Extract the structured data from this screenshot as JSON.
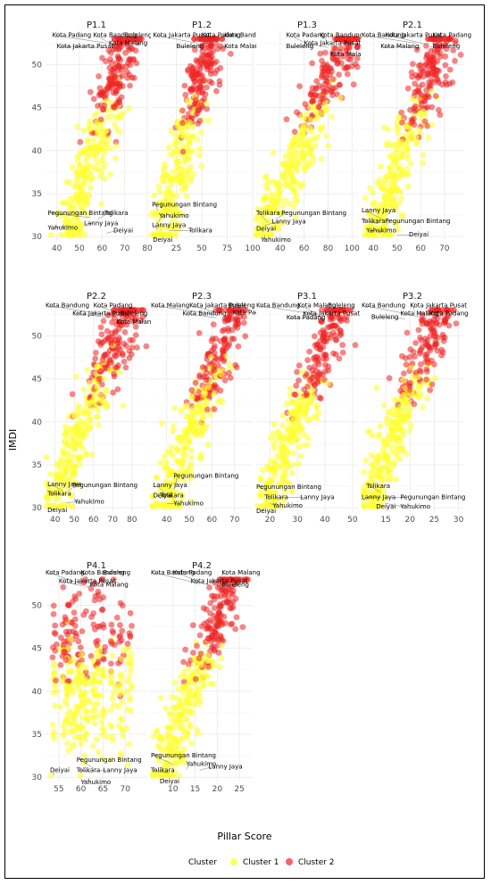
{
  "chart_data": {
    "type": "scatter",
    "xlabel": "Pillar Score",
    "ylabel": "IMDI",
    "ylim": [
      29.5,
      54
    ],
    "y_ticks": [
      30,
      35,
      40,
      45,
      50
    ],
    "legend": {
      "title": "Cluster",
      "position": "bottom",
      "entries": [
        {
          "name": "Cluster 1",
          "color": "#ffff33"
        },
        {
          "name": "Cluster 2",
          "color": "#ee2222"
        }
      ]
    },
    "grid": true,
    "panels": [
      {
        "title": "P1.1",
        "xlim": [
          35,
          80
        ],
        "x_ticks": [
          40,
          50,
          60,
          70,
          80
        ],
        "trend": [
          [
            45,
            30
          ],
          [
            72,
            54
          ]
        ],
        "labels": [
          {
            "text": "Kota Padang",
            "x": 38,
            "y": 53.2,
            "px": 62,
            "py": 52.5
          },
          {
            "text": "Kota Bandung",
            "x": 56,
            "y": 53.2,
            "px": 64,
            "py": 52.4
          },
          {
            "text": "Buleleng",
            "x": 70,
            "y": 53.2,
            "px": 67,
            "py": 52.6
          },
          {
            "text": "Kota Malang",
            "x": 63,
            "y": 52.3,
            "px": 66,
            "py": 52.0
          },
          {
            "text": "Kota Jakarta Pusat",
            "x": 40,
            "y": 51.9,
            "px": 61,
            "py": 52.0
          },
          {
            "text": "Pegunungan Bintang",
            "x": 36,
            "y": 32.5,
            "px": 55,
            "py": 32.2
          },
          {
            "text": "Tolikara",
            "x": 61,
            "y": 32.5,
            "px": 58,
            "py": 32.0
          },
          {
            "text": "Lanny Jaya",
            "x": 52,
            "y": 31.3,
            "px": 56,
            "py": 31.5
          },
          {
            "text": "Yahukimo",
            "x": 36,
            "y": 30.8,
            "px": 46,
            "py": 31.2
          },
          {
            "text": "Deiyai",
            "x": 65,
            "y": 30.5,
            "px": 62,
            "py": 30.4
          }
        ]
      },
      {
        "title": "P1.2",
        "xlim": [
          0,
          100
        ],
        "x_ticks": [
          25,
          50,
          75,
          100
        ],
        "trend": [
          [
            10,
            30
          ],
          [
            62,
            54
          ]
        ],
        "labels": [
          {
            "text": "Kota Jakarta Pusat",
            "x": 2,
            "y": 53.2,
            "px": 46,
            "py": 52.5
          },
          {
            "text": "Kota Padang",
            "x": 50,
            "y": 53.2,
            "px": 55,
            "py": 52.5
          },
          {
            "text": "Kota Bandung",
            "x": 72,
            "y": 53.2,
            "px": 60,
            "py": 52.6
          },
          {
            "text": "Buleleng",
            "x": 25,
            "y": 51.9,
            "px": 45,
            "py": 52.1
          },
          {
            "text": "Kota Malang",
            "x": 72,
            "y": 51.9,
            "px": 65,
            "py": 52.0
          },
          {
            "text": "Pegunungan Bintang",
            "x": 1,
            "y": 33.5,
            "px": 7,
            "py": 33.0
          },
          {
            "text": "Yahukimo",
            "x": 8,
            "y": 32.2,
            "px": 6,
            "py": 31.5
          },
          {
            "text": "Lanny Jaya",
            "x": 1,
            "y": 31.1,
            "px": 6,
            "py": 30.8
          },
          {
            "text": "Tolikara",
            "x": 37,
            "y": 30.5,
            "px": 18,
            "py": 30.7
          },
          {
            "text": "Deiyai",
            "x": 2,
            "y": 29.4,
            "px": 3,
            "py": 29.9
          }
        ]
      },
      {
        "title": "P1.3",
        "xlim": [
          20,
          105
        ],
        "x_ticks": [
          40,
          60,
          80,
          100
        ],
        "trend": [
          [
            25,
            30
          ],
          [
            100,
            54
          ]
        ],
        "labels": [
          {
            "text": "Kota Padang",
            "x": 45,
            "y": 53.2,
            "px": 62,
            "py": 52.5
          },
          {
            "text": "Kota Bandung",
            "x": 73,
            "y": 53.2,
            "px": 80,
            "py": 52.5
          },
          {
            "text": "Kota Jakarta Pusat",
            "x": 60,
            "y": 52.3,
            "px": 80,
            "py": 52.0
          },
          {
            "text": "Buleleng",
            "x": 45,
            "y": 51.9,
            "px": 68,
            "py": 52.1
          },
          {
            "text": "Kota Malang",
            "x": 82,
            "y": 51.0,
            "px": 90,
            "py": 51.8
          },
          {
            "text": "Pegunungan Bintang",
            "x": 41,
            "y": 32.5,
            "px": 36,
            "py": 32.0
          },
          {
            "text": "Tolikara",
            "x": 20,
            "y": 32.5,
            "px": 30,
            "py": 31.6
          },
          {
            "text": "Lanny Jaya",
            "x": 33,
            "y": 31.5,
            "px": 28,
            "py": 31.3
          },
          {
            "text": "Deiyai",
            "x": 20,
            "y": 30.7,
            "px": 26,
            "py": 30.5
          },
          {
            "text": "Yahukimo",
            "x": 24,
            "y": 29.4,
            "px": 27,
            "py": 30.2
          }
        ]
      },
      {
        "title": "P2.1",
        "xlim": [
          35,
          78
        ],
        "x_ticks": [
          40,
          50,
          60,
          70
        ],
        "trend": [
          [
            40,
            30
          ],
          [
            70,
            54
          ]
        ],
        "labels": [
          {
            "text": "Kota Bandung",
            "x": 35,
            "y": 53.2,
            "px": 58,
            "py": 52.5
          },
          {
            "text": "Kota Jakarta Pusat",
            "x": 45,
            "y": 53.2,
            "px": 62,
            "py": 52.4
          },
          {
            "text": "Kota Padang",
            "x": 65,
            "y": 53.2,
            "px": 68,
            "py": 52.5
          },
          {
            "text": "Kota Malang",
            "x": 43,
            "y": 51.9,
            "px": 60,
            "py": 52.0
          },
          {
            "text": "Buleleng",
            "x": 65,
            "y": 51.9,
            "px": 64,
            "py": 52.1
          },
          {
            "text": "Lanny Jaya",
            "x": 35,
            "y": 32.8,
            "px": 44,
            "py": 32.0
          },
          {
            "text": "Tolikara",
            "x": 35,
            "y": 31.6,
            "px": 42,
            "py": 31.5
          },
          {
            "text": "Pegunungan Bintang",
            "x": 45,
            "y": 31.6,
            "px": 46,
            "py": 31.4
          },
          {
            "text": "Yahukimo",
            "x": 37,
            "y": 30.5,
            "px": 44,
            "py": 30.6
          },
          {
            "text": "Deiyai",
            "x": 55,
            "y": 30.0,
            "px": 50,
            "py": 30.2
          }
        ]
      },
      {
        "title": "P2.2",
        "xlim": [
          35,
          88
        ],
        "x_ticks": [
          40,
          50,
          60,
          70,
          80
        ],
        "trend": [
          [
            38,
            30
          ],
          [
            80,
            54
          ]
        ],
        "labels": [
          {
            "text": "Kota Bandung",
            "x": 35,
            "y": 53.3,
            "px": 66,
            "py": 52.5
          },
          {
            "text": "Kota Padang",
            "x": 60,
            "y": 53.3,
            "px": 75,
            "py": 52.5
          },
          {
            "text": "Kota Jakarta Pusat",
            "x": 49,
            "y": 52.4,
            "px": 70,
            "py": 52.1
          },
          {
            "text": "Buleleng",
            "x": 74,
            "y": 52.4,
            "px": 72,
            "py": 52.3
          },
          {
            "text": "Kota Malang",
            "x": 72,
            "y": 51.4,
            "px": 78,
            "py": 52.0
          },
          {
            "text": "Lanny Jaya",
            "x": 36,
            "y": 32.5,
            "px": 44,
            "py": 32.0
          },
          {
            "text": "Pegunungan Bintang",
            "x": 49,
            "y": 32.4,
            "px": 47,
            "py": 32.0
          },
          {
            "text": "Tolikara",
            "x": 36,
            "y": 31.4,
            "px": 43,
            "py": 31.6
          },
          {
            "text": "Yahukimo",
            "x": 50,
            "y": 30.5,
            "px": 46,
            "py": 30.6
          },
          {
            "text": "Deiyai",
            "x": 36,
            "y": 29.5,
            "px": 39,
            "py": 29.9
          }
        ]
      },
      {
        "title": "P2.3",
        "xlim": [
          33,
          78
        ],
        "x_ticks": [
          40,
          50,
          60,
          70
        ],
        "trend": [
          [
            38,
            30
          ],
          [
            72,
            54
          ]
        ],
        "labels": [
          {
            "text": "Kota Malang",
            "x": 33,
            "y": 53.3,
            "px": 62,
            "py": 52.5
          },
          {
            "text": "Kota Jakarta Pusat",
            "x": 50,
            "y": 53.3,
            "px": 65,
            "py": 52.5
          },
          {
            "text": "Kota Bandung",
            "x": 47,
            "y": 52.4,
            "px": 62,
            "py": 52.1
          },
          {
            "text": "Buleleng",
            "x": 67,
            "y": 53.3,
            "px": 66,
            "py": 52.6
          },
          {
            "text": "Kota Padang",
            "x": 69,
            "y": 52.5,
            "px": 68,
            "py": 52.3
          },
          {
            "text": "Pegunungan Bintang",
            "x": 43,
            "y": 33.5,
            "px": 44,
            "py": 32.5
          },
          {
            "text": "Lanny Jaya",
            "x": 34,
            "y": 32.4,
            "px": 40,
            "py": 31.5
          },
          {
            "text": "Deiyai",
            "x": 34,
            "y": 31.2,
            "px": 38,
            "py": 31.0
          },
          {
            "text": "Tolikara",
            "x": 37,
            "y": 31.2,
            "px": 39,
            "py": 31.3
          },
          {
            "text": "Yahukimo",
            "x": 43,
            "y": 30.3,
            "px": 40,
            "py": 30.5
          }
        ]
      },
      {
        "title": "P3.1",
        "xlim": [
          15,
          52
        ],
        "x_ticks": [
          20,
          30,
          40,
          50
        ],
        "trend": [
          [
            18,
            30
          ],
          [
            46,
            54
          ]
        ],
        "labels": [
          {
            "text": "Kota Bandung",
            "x": 15,
            "y": 53.3,
            "px": 37,
            "py": 52.5
          },
          {
            "text": "Kota Malang",
            "x": 30,
            "y": 53.3,
            "px": 38,
            "py": 52.4
          },
          {
            "text": "Buleleng",
            "x": 41,
            "y": 53.3,
            "px": 42,
            "py": 52.6
          },
          {
            "text": "Kota Jakarta Pusat",
            "x": 32,
            "y": 52.4,
            "px": 39,
            "py": 52.2
          },
          {
            "text": "Kota Padang",
            "x": 26,
            "y": 51.9,
            "px": 37,
            "py": 52.0
          },
          {
            "text": "Pegunungan Bintang",
            "x": 15,
            "y": 32.2,
            "px": 19,
            "py": 32.0
          },
          {
            "text": "Tolikara",
            "x": 18,
            "y": 31.0,
            "px": 20,
            "py": 31.4
          },
          {
            "text": "Lanny Jaya",
            "x": 31,
            "y": 31.0,
            "px": 22,
            "py": 31.2
          },
          {
            "text": "Yahukimo",
            "x": 21,
            "y": 30.0,
            "px": 20,
            "py": 30.5
          },
          {
            "text": "Deiyai",
            "x": 15,
            "y": 29.4,
            "px": 18,
            "py": 29.9
          }
        ]
      },
      {
        "title": "P3.2",
        "xlim": [
          10,
          31
        ],
        "x_ticks": [
          15,
          20,
          25,
          30
        ],
        "trend": [
          [
            11,
            30
          ],
          [
            27,
            54
          ]
        ],
        "labels": [
          {
            "text": "Kota Bandung",
            "x": 10,
            "y": 53.3,
            "px": 20,
            "py": 52.5
          },
          {
            "text": "Kota Jakarta Pusat",
            "x": 20,
            "y": 53.3,
            "px": 21,
            "py": 52.5
          },
          {
            "text": "Kota Malang",
            "x": 18,
            "y": 52.4,
            "px": 22,
            "py": 52.2
          },
          {
            "text": "Kota Padang",
            "x": 24,
            "y": 52.4,
            "px": 23,
            "py": 52.3
          },
          {
            "text": "Buleleng",
            "x": 12,
            "y": 52.0,
            "px": 19,
            "py": 52.0
          },
          {
            "text": "Tolikara",
            "x": 11,
            "y": 32.3,
            "px": 14,
            "py": 31.8
          },
          {
            "text": "Lanny Jaya",
            "x": 10,
            "y": 31.0,
            "px": 14,
            "py": 31.2
          },
          {
            "text": "Pegunungan Bintang",
            "x": 18,
            "y": 31.0,
            "px": 15,
            "py": 31.2
          },
          {
            "text": "Deiyai",
            "x": 13,
            "y": 29.9,
            "px": 14,
            "py": 30.4
          },
          {
            "text": "Yahukimo",
            "x": 18,
            "y": 29.9,
            "px": 15,
            "py": 30.5
          }
        ]
      },
      {
        "title": "P4.1",
        "xlim": [
          52,
          75
        ],
        "x_ticks": [
          55,
          60,
          65,
          70
        ],
        "trend": null,
        "labels": [
          {
            "text": "Kota Padang",
            "x": 52,
            "y": 53.6,
            "px": 60,
            "py": 52.5
          },
          {
            "text": "Kota Bandung",
            "x": 60,
            "y": 53.6,
            "px": 62,
            "py": 52.5
          },
          {
            "text": "Buleleng",
            "x": 65,
            "y": 53.6,
            "px": 65,
            "py": 52.6
          },
          {
            "text": "Kota Jakarta Pusat",
            "x": 55,
            "y": 52.6,
            "px": 60,
            "py": 52.3
          },
          {
            "text": "Kota Malang",
            "x": 62,
            "y": 52.2,
            "px": 61,
            "py": 52.1
          },
          {
            "text": "Pegunungan Bintang",
            "x": 59,
            "y": 31.8,
            "px": 63,
            "py": 31.0
          },
          {
            "text": "Tolikara",
            "x": 59,
            "y": 30.6,
            "px": 62,
            "py": 30.6
          },
          {
            "text": "Lanny Jaya",
            "x": 65,
            "y": 30.6,
            "px": 63,
            "py": 30.7
          },
          {
            "text": "Deiyai",
            "x": 53,
            "y": 30.6,
            "px": 54,
            "py": 30.2
          },
          {
            "text": "Yahukimo",
            "x": 60,
            "y": 29.2,
            "px": 62,
            "py": 29.9
          }
        ]
      },
      {
        "title": "P4.2",
        "xlim": [
          5,
          28
        ],
        "x_ticks": [
          10,
          15,
          20,
          25
        ],
        "trend": [
          [
            7,
            30
          ],
          [
            24,
            54
          ]
        ],
        "labels": [
          {
            "text": "Kota Bandung",
            "x": 5,
            "y": 53.6,
            "px": 16,
            "py": 52.5
          },
          {
            "text": "Kota Padang",
            "x": 10,
            "y": 53.6,
            "px": 17,
            "py": 52.5
          },
          {
            "text": "Kota Malang",
            "x": 21,
            "y": 53.6,
            "px": 19,
            "py": 52.6
          },
          {
            "text": "Kota Jakarta Pusat",
            "x": 14,
            "y": 52.6,
            "px": 18,
            "py": 52.4
          },
          {
            "text": "Buleleng",
            "x": 21,
            "y": 52.2,
            "px": 20,
            "py": 52.2
          },
          {
            "text": "Pegunungan Bintang",
            "x": 5,
            "y": 32.3,
            "px": 10,
            "py": 31.5
          },
          {
            "text": "Yahukimo",
            "x": 13,
            "y": 31.3,
            "px": 13,
            "py": 30.9
          },
          {
            "text": "Lanny Jaya",
            "x": 18,
            "y": 31.0,
            "px": 16,
            "py": 30.8
          },
          {
            "text": "Tolikara",
            "x": 5,
            "y": 30.6,
            "px": 9,
            "py": 30.5
          },
          {
            "text": "Deiyai",
            "x": 7,
            "y": 29.3,
            "px": 8,
            "py": 29.9
          }
        ]
      }
    ]
  }
}
